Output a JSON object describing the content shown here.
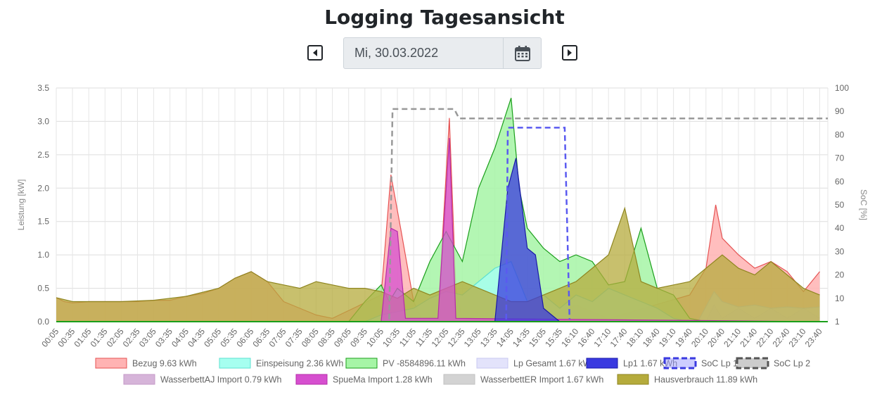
{
  "header": {
    "title": "Logging Tagesansicht"
  },
  "date_picker": {
    "value": "Mi, 30.03.2022",
    "prev_icon": "caret-left-square-icon",
    "next_icon": "caret-right-square-icon",
    "calendar_icon": "calendar-icon"
  },
  "chart_data": {
    "type": "area",
    "title": "",
    "ylabel": "Leistung [kW]",
    "y2label": "SoC [%]",
    "ylim": [
      0,
      3.5
    ],
    "y2lim": [
      0,
      100
    ],
    "yticks": [
      "0.0",
      "0.5",
      "1.0",
      "1.5",
      "2.0",
      "2.5",
      "3.0",
      "3.5"
    ],
    "y2ticks": [
      "1",
      "10",
      "20",
      "30",
      "40",
      "50",
      "60",
      "70",
      "80",
      "90",
      "100"
    ],
    "x_labels": [
      "00:05",
      "00:35",
      "01:05",
      "01:35",
      "02:05",
      "02:35",
      "03:05",
      "03:35",
      "04:05",
      "04:35",
      "05:05",
      "05:35",
      "06:05",
      "06:35",
      "07:05",
      "07:35",
      "08:05",
      "08:35",
      "09:05",
      "09:35",
      "10:05",
      "10:35",
      "11:05",
      "11:35",
      "12:05",
      "12:35",
      "13:05",
      "13:35",
      "14:05",
      "14:35",
      "15:05",
      "15:35",
      "16:10",
      "16:40",
      "17:10",
      "17:40",
      "18:10",
      "18:40",
      "19:10",
      "19:40",
      "20:10",
      "20:40",
      "21:10",
      "21:40",
      "22:10",
      "22:40",
      "23:10",
      "23:40"
    ],
    "grid": true,
    "legend_position": "bottom",
    "legend": [
      {
        "label": "Bezug 9.63 kWh",
        "fill": "#ffb3b3",
        "stroke": "#e55353",
        "dashed": false
      },
      {
        "label": "Einspeisung 2.36 kWh",
        "fill": "#a6fff0",
        "stroke": "#5fe0d0",
        "dashed": false
      },
      {
        "label": "PV -8584896.11 kWh",
        "fill": "#a6f5a6",
        "stroke": "#1a9e1a",
        "dashed": false
      },
      {
        "label": "Lp Gesamt 1.67 kWh",
        "fill": "#e3e3fb",
        "stroke": "#c8c8f0",
        "dashed": false
      },
      {
        "label": "Lp1 1.67 kWh",
        "fill": "#3a3ae0",
        "stroke": "#1a1aa8",
        "dashed": false
      },
      {
        "label": "SoC Lp 1",
        "fill": "#9b9bff",
        "stroke": "#3a3ae0",
        "dashed": true
      },
      {
        "label": "SoC Lp 2",
        "fill": "#999999",
        "stroke": "#555555",
        "dashed": true
      },
      {
        "label": "WasserbettAJ Import 0.79 kWh",
        "fill": "#d6b4d9",
        "stroke": "#c49ac8",
        "dashed": false
      },
      {
        "label": "SpueMa Import 1.28 kWh",
        "fill": "#d64fcf",
        "stroke": "#b52ca8",
        "dashed": false
      },
      {
        "label": "WasserbettER Import 1.67 kWh",
        "fill": "#d3d3d3",
        "stroke": "#c0c0c0",
        "dashed": false
      },
      {
        "label": "Hausverbrauch 11.89 kWh",
        "fill": "#b5ab3c",
        "stroke": "#8f8620",
        "dashed": false
      }
    ],
    "series": [
      {
        "name": "Bezug 9.63 kWh",
        "points": [
          [
            0,
            0.36
          ],
          [
            0.5,
            0.3
          ],
          [
            1,
            0.28
          ],
          [
            2,
            0.3
          ],
          [
            3,
            0.3
          ],
          [
            4,
            0.3
          ],
          [
            5,
            0.3
          ],
          [
            6,
            0.32
          ],
          [
            7,
            0.32
          ],
          [
            8,
            0.38
          ],
          [
            9,
            0.42
          ],
          [
            10,
            0.5
          ],
          [
            11,
            0.65
          ],
          [
            12,
            0.75
          ],
          [
            13,
            0.6
          ],
          [
            14,
            0.3
          ],
          [
            15,
            0.2
          ],
          [
            16,
            0.1
          ],
          [
            17,
            0.05
          ],
          [
            20,
            0.4
          ],
          [
            20.6,
            2.2
          ],
          [
            21.2,
            1.4
          ],
          [
            22,
            0.3
          ],
          [
            22.5,
            0.05
          ],
          [
            23.5,
            0.1
          ],
          [
            24.2,
            3.05
          ],
          [
            24.6,
            0.5
          ],
          [
            25,
            0.05
          ],
          [
            30,
            0.05
          ],
          [
            32,
            0.25
          ],
          [
            34,
            0.05
          ],
          [
            39,
            0.4
          ],
          [
            40,
            0.8
          ],
          [
            40.6,
            1.75
          ],
          [
            41,
            1.25
          ],
          [
            42,
            1.0
          ],
          [
            43,
            0.8
          ],
          [
            44,
            0.9
          ],
          [
            45,
            0.75
          ],
          [
            46,
            0.45
          ],
          [
            47,
            0.75
          ]
        ]
      },
      {
        "name": "Einspeisung 2.36 kWh",
        "points": [
          [
            0,
            0
          ],
          [
            19,
            0
          ],
          [
            20,
            0.1
          ],
          [
            21,
            0.15
          ],
          [
            22,
            0.2
          ],
          [
            23,
            0.35
          ],
          [
            24,
            0.45
          ],
          [
            25,
            0.4
          ],
          [
            26,
            0.6
          ],
          [
            27,
            0.8
          ],
          [
            28,
            0.9
          ],
          [
            29,
            0.3
          ],
          [
            30,
            0.4
          ],
          [
            31,
            0.2
          ],
          [
            32,
            0.4
          ],
          [
            33,
            0.3
          ],
          [
            34,
            0.5
          ],
          [
            35,
            0.4
          ],
          [
            36,
            0.3
          ],
          [
            37,
            0.2
          ],
          [
            38,
            0.05
          ],
          [
            39,
            0
          ],
          [
            47,
            0
          ]
        ]
      },
      {
        "name": "PV -8584896.11 kWh",
        "points": [
          [
            0,
            0
          ],
          [
            18,
            0
          ],
          [
            19,
            0.3
          ],
          [
            20,
            0.55
          ],
          [
            20.5,
            0.3
          ],
          [
            21,
            0.5
          ],
          [
            22,
            0.3
          ],
          [
            23,
            0.9
          ],
          [
            24,
            1.35
          ],
          [
            25,
            0.9
          ],
          [
            26,
            2.0
          ],
          [
            27,
            2.6
          ],
          [
            28,
            3.35
          ],
          [
            28.5,
            2.0
          ],
          [
            29,
            1.4
          ],
          [
            30,
            1.1
          ],
          [
            31,
            0.9
          ],
          [
            32,
            1.0
          ],
          [
            33,
            0.9
          ],
          [
            34,
            0.55
          ],
          [
            35,
            0.6
          ],
          [
            36,
            1.4
          ],
          [
            37,
            0.5
          ],
          [
            38,
            0.4
          ],
          [
            39,
            0.05
          ],
          [
            40,
            0
          ],
          [
            47,
            0
          ]
        ]
      },
      {
        "name": "Lp Gesamt 1.67 kWh",
        "points": [
          [
            0,
            0
          ],
          [
            39.5,
            0
          ],
          [
            40.5,
            0.45
          ],
          [
            41,
            0.3
          ],
          [
            42,
            0.22
          ],
          [
            43,
            0.25
          ],
          [
            44,
            0.2
          ],
          [
            45,
            0.22
          ],
          [
            46,
            0.2
          ],
          [
            47,
            0.22
          ]
        ]
      },
      {
        "name": "Lp1 1.67 kWh",
        "points": [
          [
            0,
            0
          ],
          [
            27,
            0
          ],
          [
            27.8,
            2.0
          ],
          [
            28.3,
            2.45
          ],
          [
            29,
            1.1
          ],
          [
            29.5,
            1.0
          ],
          [
            30,
            0.2
          ],
          [
            31,
            0
          ],
          [
            47,
            0
          ]
        ]
      },
      {
        "name": "SoC Lp 1",
        "axis": "right",
        "points": [
          [
            27.7,
            1
          ],
          [
            27.8,
            83
          ],
          [
            28.3,
            83
          ],
          [
            28.8,
            83
          ],
          [
            31.3,
            83
          ],
          [
            31.6,
            1
          ]
        ]
      },
      {
        "name": "SoC Lp 2",
        "axis": "right",
        "points": [
          [
            20.5,
            1
          ],
          [
            20.7,
            91
          ],
          [
            24.5,
            91
          ],
          [
            24.8,
            87
          ],
          [
            47.5,
            87
          ]
        ]
      },
      {
        "name": "WasserbettAJ Import 0.79 kWh",
        "points": [
          [
            0,
            0
          ],
          [
            40,
            0
          ],
          [
            40.5,
            0.25
          ],
          [
            41,
            0.05
          ],
          [
            42,
            0.2
          ],
          [
            43,
            0.05
          ],
          [
            44,
            0.2
          ],
          [
            45,
            0.05
          ],
          [
            46,
            0.2
          ],
          [
            47,
            0.05
          ]
        ]
      },
      {
        "name": "SpueMa Import 1.28 kWh",
        "points": [
          [
            0,
            0
          ],
          [
            20,
            0
          ],
          [
            20.6,
            1.4
          ],
          [
            21,
            1.35
          ],
          [
            21.5,
            0.05
          ],
          [
            23.5,
            0.05
          ],
          [
            24.2,
            2.75
          ],
          [
            24.6,
            0.05
          ],
          [
            47,
            0
          ]
        ]
      },
      {
        "name": "WasserbettER Import 1.67 kWh",
        "points": [
          [
            0,
            0
          ],
          [
            23,
            0
          ],
          [
            24,
            0.3
          ],
          [
            25,
            0.1
          ],
          [
            26,
            0.2
          ],
          [
            27,
            0.05
          ],
          [
            47,
            0
          ]
        ]
      },
      {
        "name": "Hausverbrauch 11.89 kWh",
        "points": [
          [
            0,
            0.36
          ],
          [
            1,
            0.3
          ],
          [
            2,
            0.3
          ],
          [
            4,
            0.3
          ],
          [
            6,
            0.32
          ],
          [
            8,
            0.38
          ],
          [
            10,
            0.5
          ],
          [
            11,
            0.65
          ],
          [
            12,
            0.75
          ],
          [
            13,
            0.6
          ],
          [
            14,
            0.55
          ],
          [
            15,
            0.5
          ],
          [
            16,
            0.6
          ],
          [
            17,
            0.55
          ],
          [
            18,
            0.5
          ],
          [
            19,
            0.5
          ],
          [
            20,
            0.45
          ],
          [
            21,
            0.35
          ],
          [
            22,
            0.5
          ],
          [
            23,
            0.4
          ],
          [
            24,
            0.5
          ],
          [
            25,
            0.6
          ],
          [
            26,
            0.5
          ],
          [
            27,
            0.4
          ],
          [
            28,
            0.3
          ],
          [
            29,
            0.3
          ],
          [
            30,
            0.4
          ],
          [
            31,
            0.5
          ],
          [
            32,
            0.6
          ],
          [
            33,
            0.8
          ],
          [
            34,
            1.0
          ],
          [
            35,
            1.7
          ],
          [
            36,
            0.6
          ],
          [
            37,
            0.5
          ],
          [
            38,
            0.55
          ],
          [
            39,
            0.6
          ],
          [
            40,
            0.8
          ],
          [
            41,
            1.0
          ],
          [
            42,
            0.8
          ],
          [
            43,
            0.7
          ],
          [
            44,
            0.9
          ],
          [
            45,
            0.7
          ],
          [
            46,
            0.5
          ],
          [
            47,
            0.4
          ]
        ]
      }
    ]
  }
}
